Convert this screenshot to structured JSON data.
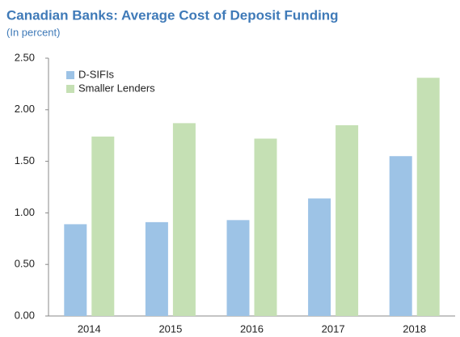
{
  "chart_data": {
    "type": "bar",
    "title": "Canadian Banks: Average Cost of Deposit Funding",
    "subtitle": "(In percent)",
    "categories": [
      "2014",
      "2015",
      "2016",
      "2017",
      "2018"
    ],
    "series": [
      {
        "name": "D-SIFIs",
        "color": "#9dc3e6",
        "values": [
          0.89,
          0.91,
          0.93,
          1.14,
          1.55
        ]
      },
      {
        "name": "Smaller Lenders",
        "color": "#c5e0b4",
        "values": [
          1.74,
          1.87,
          1.72,
          1.85,
          2.31
        ]
      }
    ],
    "ylim": [
      0,
      2.5
    ],
    "yticks": [
      {
        "value": 0,
        "label": "0.00"
      },
      {
        "value": 0.5,
        "label": "0.50"
      },
      {
        "value": 1,
        "label": "1.00"
      },
      {
        "value": 1.5,
        "label": "1.50"
      },
      {
        "value": 2,
        "label": "2.00"
      },
      {
        "value": 2.5,
        "label": "2.50"
      }
    ],
    "grid": false,
    "legend": "upper-left"
  }
}
